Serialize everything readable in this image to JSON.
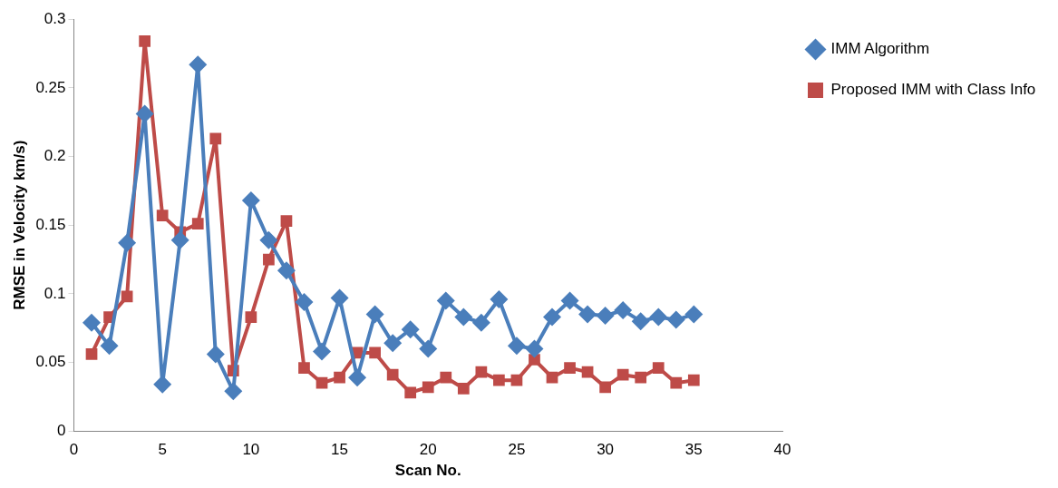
{
  "chart_data": {
    "type": "line",
    "xlabel": "Scan No.",
    "ylabel": "RMSE in Velocity km/s)",
    "x": [
      1,
      2,
      3,
      4,
      5,
      6,
      7,
      8,
      9,
      10,
      11,
      12,
      13,
      14,
      15,
      16,
      17,
      18,
      19,
      20,
      21,
      22,
      23,
      24,
      25,
      26,
      27,
      28,
      29,
      30,
      31,
      32,
      33,
      34,
      35
    ],
    "series": [
      {
        "name": "IMM Algorithm",
        "color": "#4a7ebb",
        "marker": "diamond",
        "values": [
          0.079,
          0.062,
          0.137,
          0.231,
          0.034,
          0.139,
          0.267,
          0.056,
          0.029,
          0.168,
          0.139,
          0.117,
          0.094,
          0.058,
          0.097,
          0.039,
          0.085,
          0.064,
          0.074,
          0.06,
          0.095,
          0.083,
          0.079,
          0.096,
          0.062,
          0.06,
          0.083,
          0.095,
          0.085,
          0.084,
          0.088,
          0.08,
          0.083,
          0.081,
          0.085
        ]
      },
      {
        "name": "Proposed IMM with Class Info",
        "color": "#be4b48",
        "marker": "square",
        "values": [
          0.056,
          0.083,
          0.098,
          0.284,
          0.157,
          0.145,
          0.151,
          0.213,
          0.044,
          0.083,
          0.125,
          0.153,
          0.046,
          0.035,
          0.039,
          0.057,
          0.057,
          0.041,
          0.028,
          0.032,
          0.039,
          0.031,
          0.043,
          0.037,
          0.037,
          0.052,
          0.039,
          0.046,
          0.043,
          0.032,
          0.041,
          0.039,
          0.046,
          0.035,
          0.037
        ]
      }
    ],
    "xlim": [
      0,
      40
    ],
    "xticks": [
      0,
      5,
      10,
      15,
      20,
      25,
      30,
      35,
      40
    ],
    "ylim": [
      0,
      0.3
    ],
    "yticks": [
      0,
      0.05,
      0.1,
      0.15,
      0.2,
      0.25,
      0.3
    ],
    "grid": false,
    "legend": "top right"
  }
}
